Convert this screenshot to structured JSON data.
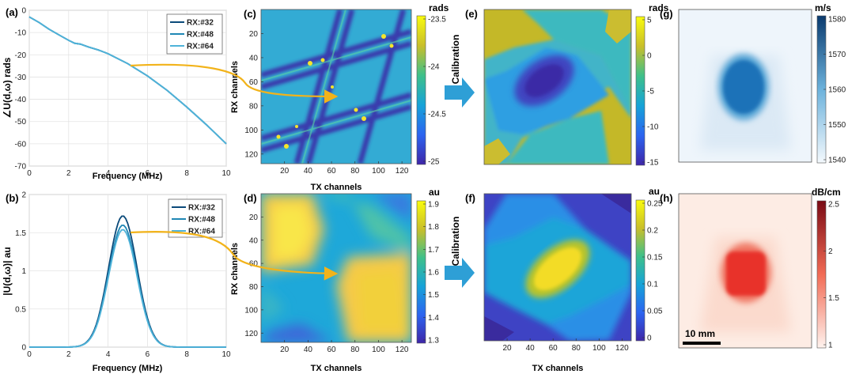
{
  "colors": {
    "rx32": "#0b4a7a",
    "rx48": "#1f87b5",
    "rx64": "#4fb3d9",
    "arrow_curve": "#f2b31a",
    "arrow_block": "#2e9fd6"
  },
  "chart_data": [
    {
      "panel": "(a)",
      "type": "line",
      "xlabel": "Frequency (MHz)",
      "ylabel": "∠U(d,ω) rads",
      "xlim": [
        0,
        10
      ],
      "ylim": [
        -70,
        0
      ],
      "xticks": [
        0,
        2,
        4,
        6,
        8,
        10
      ],
      "yticks": [
        0,
        -10,
        -20,
        -30,
        -40,
        -50,
        -60,
        -70
      ],
      "grid": true,
      "legend_position": "top-right",
      "x": [
        0,
        0.5,
        1,
        1.5,
        2,
        2.3,
        2.6,
        3,
        3.5,
        4,
        5,
        6,
        7,
        8,
        9,
        10
      ],
      "series": [
        {
          "name": "RX:#32",
          "values": [
            -3,
            -5.5,
            -8.5,
            -11,
            -13.5,
            -14.8,
            -15.2,
            -16.5,
            -17.8,
            -19.5,
            -24,
            -29.5,
            -36,
            -43.5,
            -51.5,
            -60
          ]
        },
        {
          "name": "RX:#48",
          "values": [
            -3,
            -5.5,
            -8.5,
            -11,
            -13.5,
            -14.8,
            -15.2,
            -16.5,
            -17.8,
            -19.5,
            -24,
            -29.5,
            -36,
            -43.5,
            -51.5,
            -60
          ]
        },
        {
          "name": "RX:#64",
          "values": [
            -3,
            -5.5,
            -8.5,
            -11,
            -13.5,
            -14.8,
            -15.2,
            -16.5,
            -17.8,
            -19.5,
            -24,
            -29.5,
            -36,
            -43.5,
            -51.5,
            -60
          ]
        }
      ]
    },
    {
      "panel": "(b)",
      "type": "line",
      "xlabel": "Frequency (MHz)",
      "ylabel": "|U(d,ω)| au",
      "xlim": [
        0,
        10
      ],
      "ylim": [
        0,
        2
      ],
      "xticks": [
        0,
        2,
        4,
        6,
        8,
        10
      ],
      "yticks": [
        0,
        0.5,
        1,
        1.5,
        2
      ],
      "grid": true,
      "legend_position": "top-right",
      "series": [
        {
          "name": "RX:#32",
          "peak_x": 4.75,
          "peak": 1.72,
          "sigma": 0.72
        },
        {
          "name": "RX:#48",
          "peak_x": 4.75,
          "peak": 1.6,
          "sigma": 0.72
        },
        {
          "name": "RX:#64",
          "peak_x": 4.75,
          "peak": 1.54,
          "sigma": 0.72
        }
      ]
    },
    {
      "panel": "(c)",
      "type": "heatmap",
      "xlabel": "TX channels",
      "ylabel": "RX channels",
      "xticks": [
        20,
        40,
        60,
        80,
        100,
        120
      ],
      "yticks": [
        20,
        40,
        60,
        80,
        100,
        120
      ],
      "colorbar_unit": "rads",
      "colorbar_ticks": [
        "-23.5",
        "-24",
        "-24.5",
        "-25"
      ],
      "colormap": "parula"
    },
    {
      "panel": "(d)",
      "type": "heatmap",
      "xlabel": "TX channels",
      "ylabel": "RX channels",
      "xticks": [
        20,
        40,
        60,
        80,
        100,
        120
      ],
      "yticks": [
        20,
        40,
        60,
        80,
        100,
        120
      ],
      "colorbar_unit": "au",
      "colorbar_ticks": [
        "1.9",
        "1.8",
        "1.7",
        "1.6",
        "1.5",
        "1.4",
        "1.3"
      ],
      "colormap": "parula"
    },
    {
      "panel": "(e)",
      "type": "heatmap",
      "colorbar_unit": "rads",
      "colorbar_ticks": [
        "5",
        "0",
        "-5",
        "-10",
        "-15"
      ],
      "colormap": "parula"
    },
    {
      "panel": "(f)",
      "type": "heatmap",
      "xlabel": "TX channels",
      "xticks": [
        20,
        40,
        60,
        80,
        100,
        120
      ],
      "colorbar_unit": "au",
      "colorbar_ticks": [
        "0.25",
        "0.2",
        "0.15",
        "0.1",
        "0.05",
        "0"
      ],
      "colormap": "parula"
    },
    {
      "panel": "(g)",
      "type": "heatmap",
      "colorbar_unit": "m/s",
      "colorbar_ticks": [
        "1580",
        "1570",
        "1560",
        "1550",
        "1540"
      ],
      "colormap": "blues"
    },
    {
      "panel": "(h)",
      "type": "heatmap",
      "colorbar_unit": "dB/cm",
      "colorbar_ticks": [
        "2.5",
        "2",
        "1.5",
        "1"
      ],
      "colormap": "reds",
      "scale_bar_label": "10 mm"
    }
  ],
  "calibration_label": "Calibration"
}
